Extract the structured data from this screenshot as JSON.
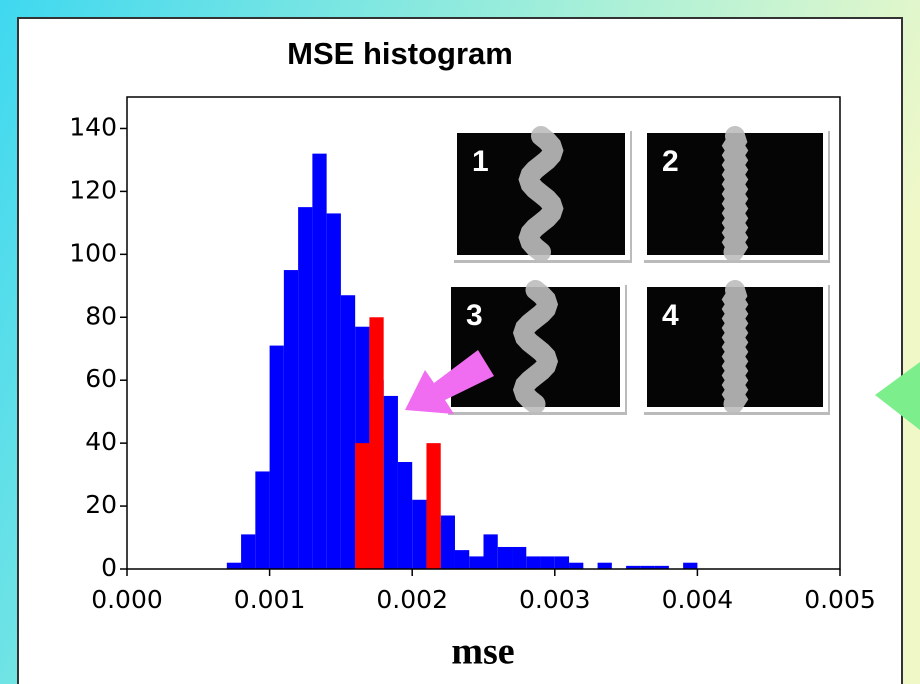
{
  "chart_data": {
    "type": "histogram",
    "title": "MSE histogram",
    "x_label": "mse",
    "xlim": [
      0,
      0.005
    ],
    "xticks": [
      {
        "value": 0,
        "label": "0.000"
      },
      {
        "value": 0.001,
        "label": "0.001"
      },
      {
        "value": 0.002,
        "label": "0.002"
      },
      {
        "value": 0.003,
        "label": "0.003"
      },
      {
        "value": 0.004,
        "label": "0.004"
      },
      {
        "value": 0.005,
        "label": "0.005"
      }
    ],
    "ylim": [
      0,
      150
    ],
    "yticks": [
      0,
      20,
      40,
      60,
      80,
      100,
      120,
      140
    ],
    "series": [
      {
        "color": "#0000ff",
        "bins": [
          0.0007,
          0.0008,
          0.0009,
          0.001,
          0.0011,
          0.0012,
          0.0013,
          0.0014,
          0.0015,
          0.0016,
          0.0017,
          0.0018,
          0.0019,
          0.002,
          0.0021,
          0.0022,
          0.0023,
          0.0024,
          0.0025,
          0.0026,
          0.0027,
          0.0028,
          0.0029,
          0.003,
          0.0031,
          0.0032,
          0.0033,
          0.0034,
          0.0035,
          0.0036,
          0.0037,
          0.0038,
          0.0039,
          0.004
        ],
        "values": [
          2,
          11,
          31,
          71,
          95,
          115,
          132,
          113,
          87,
          77,
          60,
          55,
          34,
          22,
          15,
          17,
          6,
          4,
          11,
          7,
          7,
          4,
          4,
          4,
          2,
          0,
          2,
          0,
          1,
          1,
          1,
          0,
          2
        ]
      },
      {
        "color": "#ff0000",
        "bins": [
          0.0016,
          0.0017,
          0.0018,
          0.0019,
          0.002,
          0.0021,
          0.0022
        ],
        "values": [
          40,
          80,
          0,
          0,
          0,
          40
        ]
      }
    ],
    "insets": [
      "1",
      "2",
      "3",
      "4"
    ]
  }
}
